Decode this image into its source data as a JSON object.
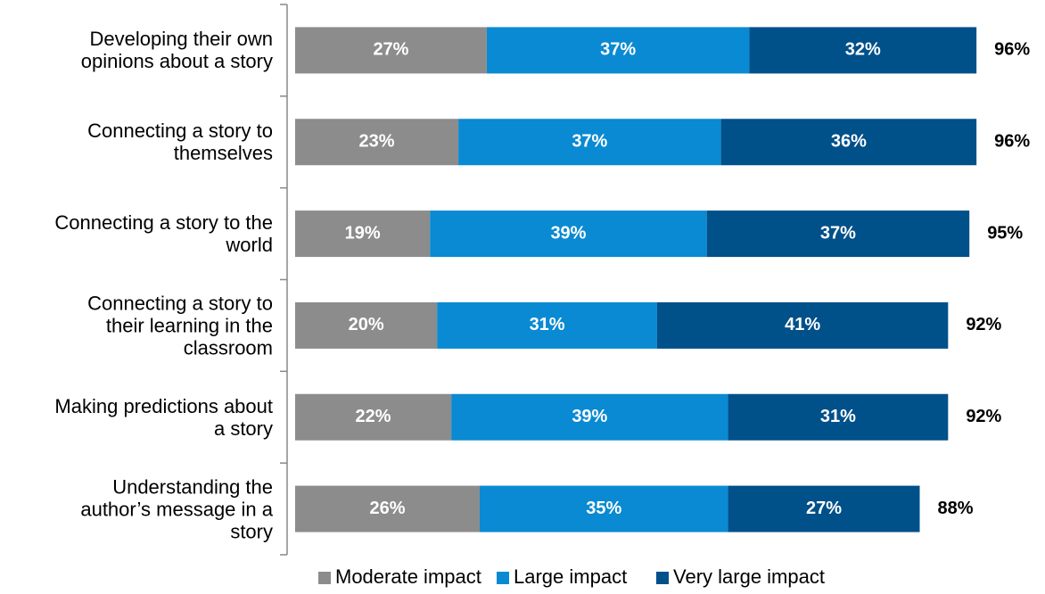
{
  "chart_data": {
    "type": "stacked-bar-horizontal",
    "categories": [
      "Developing their own\nopinions about a story",
      "Connecting a story to\nthemselves",
      "Connecting a story to the\nworld",
      "Connecting a story to\ntheir learning in the\nclassroom",
      "Making predictions about\na story",
      "Understanding the\nauthor’s message in a\nstory"
    ],
    "series": [
      {
        "name": "Moderate impact",
        "color": "#8c8c8c",
        "values": [
          27,
          23,
          19,
          20,
          22,
          26
        ],
        "value_labels": [
          "27%",
          "23%",
          "19%",
          "20%",
          "22%",
          "26%"
        ]
      },
      {
        "name": "Large impact",
        "color": "#0a8ad2",
        "values": [
          37,
          37,
          39,
          31,
          39,
          35
        ],
        "value_labels": [
          "37%",
          "37%",
          "39%",
          "31%",
          "39%",
          "35%"
        ]
      },
      {
        "name": "Very large impact",
        "color": "#00508a",
        "values": [
          32,
          36,
          37,
          41,
          31,
          27
        ],
        "value_labels": [
          "32%",
          "36%",
          "37%",
          "41%",
          "31%",
          "27%"
        ]
      }
    ],
    "totals": [
      96,
      96,
      95,
      92,
      92,
      88
    ],
    "total_labels": [
      "96%",
      "96%",
      "95%",
      "92%",
      "92%",
      "88%"
    ],
    "legend": "bottom"
  }
}
